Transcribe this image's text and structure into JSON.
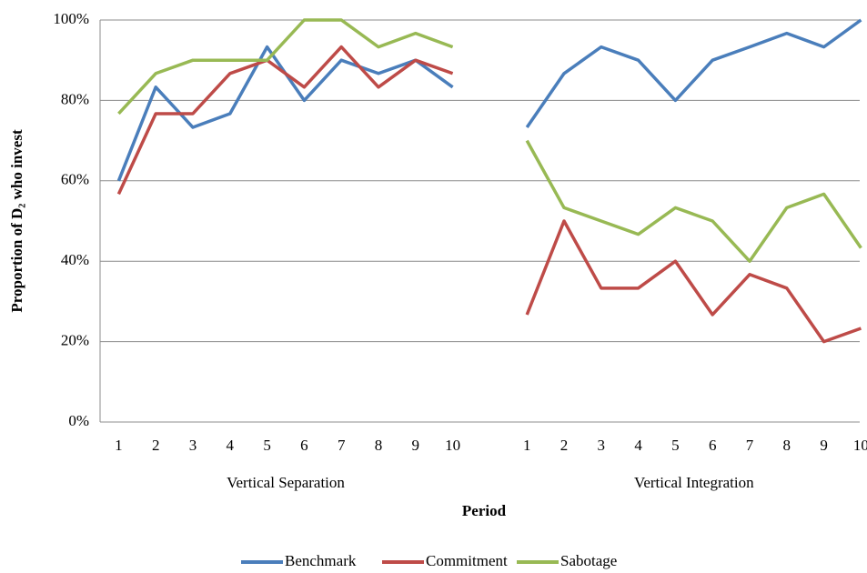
{
  "chart_data": {
    "type": "line",
    "y_label": "Proportion of D₂ who invest",
    "x_label": "Period",
    "categories": [
      "1",
      "2",
      "3",
      "4",
      "5",
      "6",
      "7",
      "8",
      "9",
      "10",
      null,
      "1",
      "2",
      "3",
      "4",
      "5",
      "6",
      "7",
      "8",
      "9",
      "10"
    ],
    "category_groups": [
      "Vertical Separation",
      "Vertical Integration"
    ],
    "series": [
      {
        "name": "Benchmark",
        "color": "#4a7ebb",
        "values": [
          60,
          83.3,
          73.3,
          76.7,
          93.3,
          80,
          90,
          86.7,
          90,
          83.3,
          null,
          73.3,
          86.7,
          93.3,
          90,
          80,
          90,
          93.3,
          96.7,
          93.3,
          100
        ]
      },
      {
        "name": "Commitment",
        "color": "#be4b48",
        "values": [
          56.7,
          76.7,
          76.7,
          86.7,
          90,
          83.3,
          93.3,
          83.3,
          90,
          86.7,
          null,
          26.7,
          50,
          33.3,
          33.3,
          40,
          26.7,
          36.7,
          33.3,
          20,
          23.3
        ]
      },
      {
        "name": "Sabotage",
        "color": "#98b954",
        "values": [
          76.7,
          86.7,
          90,
          90,
          90,
          100,
          100,
          93.3,
          96.7,
          93.3,
          null,
          70,
          53.3,
          50,
          46.7,
          53.3,
          50,
          40,
          53.3,
          56.7,
          43.3
        ]
      }
    ],
    "ylim": [
      0,
      100
    ],
    "yticks": [
      {
        "value": 0,
        "label": "0%"
      },
      {
        "value": 20,
        "label": "20%"
      },
      {
        "value": 40,
        "label": "40%"
      },
      {
        "value": 60,
        "label": "60%"
      },
      {
        "value": 80,
        "label": "80%"
      },
      {
        "value": 100,
        "label": "100%"
      }
    ],
    "grid": true,
    "legend": "bottom"
  }
}
